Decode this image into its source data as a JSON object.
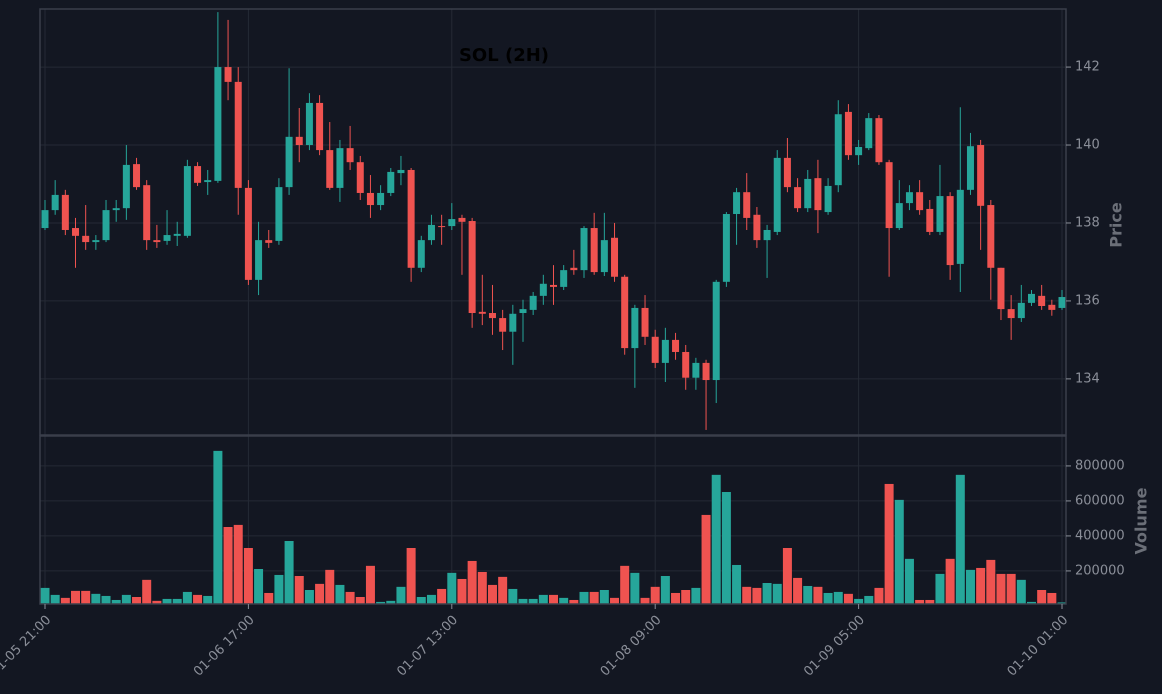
{
  "chart_data": {
    "type": "candlestick",
    "title": "SOL (2H)",
    "ylabel": "Price",
    "volume_label": "Volume",
    "up_color": "#26a69a",
    "down_color": "#ef5350",
    "grid": true,
    "categories": [
      "01-05 21:00",
      null,
      null,
      null,
      null,
      null,
      null,
      null,
      null,
      null,
      null,
      null,
      null,
      null,
      null,
      null,
      null,
      null,
      null,
      null,
      "01-06 17:00",
      null,
      null,
      null,
      null,
      null,
      null,
      null,
      null,
      null,
      null,
      null,
      null,
      null,
      null,
      null,
      null,
      null,
      null,
      null,
      "01-07 13:00",
      null,
      null,
      null,
      null,
      null,
      null,
      null,
      null,
      null,
      null,
      null,
      null,
      null,
      null,
      null,
      null,
      null,
      null,
      null,
      "01-08 09:00",
      null,
      null,
      null,
      null,
      null,
      null,
      null,
      null,
      null,
      null,
      null,
      null,
      null,
      null,
      null,
      null,
      null,
      null,
      null,
      "01-09 05:00",
      null,
      null,
      null,
      null,
      null,
      null,
      null,
      null,
      null,
      null,
      null,
      null,
      null,
      null,
      null,
      null,
      null,
      null,
      null,
      "01-10 01:00"
    ],
    "open": [
      137.87,
      138.33,
      138.72,
      137.87,
      137.67,
      137.51,
      137.56,
      138.33,
      138.38,
      139.51,
      138.97,
      137.56,
      137.54,
      137.67,
      137.67,
      139.46,
      139.05,
      139.08,
      142.0,
      141.62,
      138.9,
      136.54,
      137.56,
      137.54,
      138.92,
      140.21,
      140.0,
      141.08,
      139.87,
      138.9,
      139.92,
      139.56,
      138.77,
      138.46,
      138.77,
      139.28,
      139.36,
      136.85,
      137.56,
      137.92,
      137.92,
      138.13,
      138.05,
      135.72,
      135.69,
      135.56,
      135.21,
      135.69,
      135.77,
      136.13,
      136.41,
      136.36,
      136.85,
      136.79,
      137.87,
      136.74,
      137.62,
      136.62,
      134.79,
      135.82,
      135.08,
      134.41,
      135.0,
      134.69,
      134.03,
      134.41,
      133.97,
      136.49,
      138.23,
      138.79,
      138.21,
      137.56,
      137.77,
      139.67,
      138.92,
      138.38,
      139.15,
      138.28,
      138.97,
      140.85,
      139.74,
      139.92,
      140.69,
      139.56,
      137.87,
      138.51,
      138.79,
      138.36,
      137.77,
      138.69,
      136.95,
      138.85,
      140.0,
      138.46,
      136.85,
      135.79,
      135.56,
      135.95,
      136.13,
      135.9,
      135.82
    ],
    "high": [
      138.59,
      139.1,
      138.85,
      138.13,
      138.46,
      137.69,
      138.59,
      138.59,
      140.0,
      139.67,
      139.1,
      137.95,
      138.33,
      138.03,
      139.62,
      139.56,
      139.36,
      143.41,
      143.21,
      142.0,
      139.1,
      138.03,
      137.82,
      139.15,
      141.97,
      140.95,
      141.33,
      141.28,
      140.59,
      140.13,
      140.49,
      139.72,
      139.23,
      138.97,
      139.41,
      139.72,
      139.41,
      137.67,
      138.21,
      138.21,
      138.51,
      138.21,
      138.13,
      136.67,
      136.41,
      135.77,
      135.9,
      136.03,
      136.23,
      136.67,
      136.92,
      136.92,
      137.31,
      137.92,
      138.26,
      138.26,
      138.0,
      136.67,
      135.9,
      136.15,
      135.26,
      135.31,
      135.18,
      134.87,
      134.54,
      134.49,
      136.54,
      138.28,
      138.9,
      139.28,
      138.41,
      137.95,
      139.87,
      140.18,
      139.15,
      139.36,
      139.62,
      139.15,
      141.15,
      141.05,
      140.13,
      140.82,
      140.77,
      139.62,
      139.1,
      138.97,
      139.1,
      138.59,
      139.49,
      138.79,
      140.97,
      140.31,
      140.13,
      138.59,
      136.85,
      136.15,
      136.41,
      136.28,
      136.41,
      136.03,
      136.28
    ],
    "low": [
      137.82,
      138.21,
      137.69,
      136.85,
      137.31,
      137.31,
      137.51,
      138.03,
      138.08,
      138.85,
      137.31,
      137.36,
      137.44,
      137.41,
      137.62,
      138.95,
      138.72,
      139.03,
      141.15,
      138.21,
      136.41,
      136.15,
      137.36,
      137.44,
      138.72,
      139.56,
      139.87,
      139.74,
      138.85,
      138.54,
      139.36,
      138.59,
      138.13,
      138.33,
      138.69,
      138.97,
      136.49,
      136.74,
      137.44,
      137.44,
      137.82,
      136.67,
      135.31,
      135.38,
      135.13,
      134.74,
      134.36,
      134.95,
      135.64,
      135.9,
      135.9,
      136.28,
      136.67,
      136.59,
      136.67,
      136.64,
      136.49,
      134.62,
      133.77,
      134.87,
      134.28,
      133.92,
      134.49,
      133.72,
      133.72,
      132.69,
      133.38,
      136.36,
      137.44,
      137.82,
      137.36,
      136.59,
      137.69,
      138.79,
      138.28,
      138.28,
      137.74,
      138.21,
      138.79,
      139.62,
      139.49,
      139.87,
      139.49,
      136.62,
      137.82,
      138.33,
      138.21,
      137.69,
      137.69,
      136.54,
      136.23,
      138.72,
      137.31,
      136.03,
      135.51,
      135.0,
      135.46,
      135.87,
      135.77,
      135.62,
      135.77
    ],
    "close": [
      138.33,
      138.72,
      137.82,
      137.67,
      137.51,
      137.56,
      138.33,
      138.38,
      139.49,
      138.92,
      137.56,
      137.51,
      137.69,
      137.72,
      139.46,
      139.03,
      139.1,
      142.0,
      141.62,
      138.9,
      136.54,
      137.56,
      137.49,
      138.92,
      140.21,
      140.0,
      141.08,
      139.87,
      138.9,
      139.92,
      139.56,
      138.77,
      138.46,
      138.77,
      139.31,
      139.36,
      136.85,
      137.56,
      137.95,
      137.9,
      138.1,
      138.03,
      135.69,
      135.67,
      135.56,
      135.21,
      135.67,
      135.79,
      136.13,
      136.44,
      136.36,
      136.79,
      136.79,
      137.87,
      136.74,
      137.56,
      136.62,
      134.79,
      135.82,
      135.08,
      134.41,
      135.0,
      134.69,
      134.03,
      134.41,
      133.97,
      136.49,
      138.23,
      138.79,
      138.13,
      137.56,
      137.82,
      139.67,
      138.92,
      138.38,
      139.13,
      138.33,
      138.95,
      140.79,
      139.74,
      139.95,
      140.69,
      139.56,
      137.87,
      138.51,
      138.79,
      138.33,
      137.77,
      138.69,
      136.92,
      138.85,
      139.97,
      138.44,
      136.85,
      135.79,
      135.56,
      135.95,
      136.18,
      135.87,
      135.77,
      136.1
    ],
    "volume": [
      103000,
      63000,
      46000,
      86000,
      86000,
      69000,
      57000,
      34000,
      63000,
      51000,
      149000,
      29000,
      40000,
      40000,
      80000,
      63000,
      57000,
      886000,
      451000,
      463000,
      331000,
      211000,
      74000,
      177000,
      371000,
      171000,
      91000,
      126000,
      206000,
      120000,
      80000,
      51000,
      229000,
      23000,
      29000,
      109000,
      331000,
      51000,
      63000,
      97000,
      189000,
      154000,
      257000,
      194000,
      120000,
      166000,
      97000,
      40000,
      40000,
      63000,
      63000,
      46000,
      34000,
      80000,
      80000,
      91000,
      46000,
      229000,
      189000,
      46000,
      109000,
      171000,
      74000,
      91000,
      103000,
      520000,
      749000,
      651000,
      234000,
      109000,
      103000,
      131000,
      126000,
      331000,
      160000,
      114000,
      109000,
      74000,
      80000,
      69000,
      40000,
      57000,
      103000,
      697000,
      606000,
      269000,
      34000,
      34000,
      183000,
      269000,
      749000,
      206000,
      217000,
      263000,
      183000,
      183000,
      149000,
      23000,
      91000,
      74000,
      20000
    ],
    "ylim": [
      132.56,
      143.49
    ],
    "yticks": [
      134,
      136,
      138,
      140,
      142
    ],
    "volume_ylim": [
      11000,
      971000
    ],
    "volume_ticks": [
      200000,
      400000,
      600000,
      800000
    ]
  }
}
